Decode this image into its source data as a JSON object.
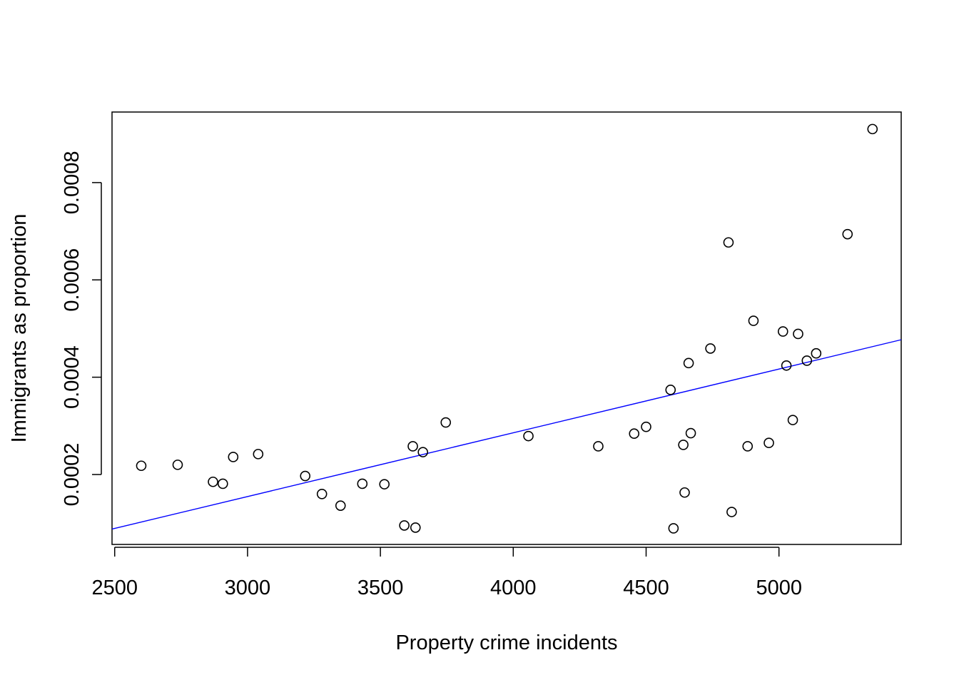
{
  "chart_data": {
    "type": "scatter",
    "title": "",
    "xlabel": "Property crime incidents",
    "ylabel": "Immigrants as proportion",
    "xlim": [
      2490,
      5460
    ],
    "ylim": [
      5.63e-05,
      0.000945
    ],
    "x_ticks": [
      2500,
      3000,
      3500,
      4000,
      4500,
      5000
    ],
    "x_tick_labels": [
      "2500",
      "3000",
      "3500",
      "4000",
      "4500",
      "5000"
    ],
    "y_ticks": [
      0.0002,
      0.0004,
      0.0006,
      0.0008
    ],
    "y_tick_labels": [
      "0.0002",
      "0.0004",
      "0.0006",
      "0.0008"
    ],
    "grid": false,
    "legend": "none",
    "colors": {
      "points": "#000000",
      "fit_line": "#0000ff"
    },
    "series": [
      {
        "points": [
          [
            2600,
            0.000218
          ],
          [
            2737,
            0.00022
          ],
          [
            2870,
            0.000185
          ],
          [
            2907,
            0.000181
          ],
          [
            2946,
            0.000236
          ],
          [
            3040,
            0.000242
          ],
          [
            3217,
            0.000197
          ],
          [
            3280,
            0.00016
          ],
          [
            3350,
            0.000136
          ],
          [
            3432,
            0.000181
          ],
          [
            3515,
            0.00018
          ],
          [
            3590,
            9.53e-05
          ],
          [
            3622,
            0.000258
          ],
          [
            3632,
            9.09e-05
          ],
          [
            3660,
            0.000246
          ],
          [
            3746,
            0.000307
          ],
          [
            4057,
            0.000279
          ],
          [
            4320,
            0.000258
          ],
          [
            4455,
            0.000284
          ],
          [
            4500,
            0.000298
          ],
          [
            4592,
            0.000374
          ],
          [
            4603,
            8.94e-05
          ],
          [
            4640,
            0.000261
          ],
          [
            4645,
            0.000163
          ],
          [
            4660,
            0.000429
          ],
          [
            4668,
            0.000285
          ],
          [
            4742,
            0.000459
          ],
          [
            4810,
            0.000677
          ],
          [
            4822,
            0.000123
          ],
          [
            4882,
            0.000258
          ],
          [
            4904,
            0.000516
          ],
          [
            4962,
            0.000265
          ],
          [
            5015,
            0.000494
          ],
          [
            5028,
            0.000424
          ],
          [
            5052,
            0.000312
          ],
          [
            5072,
            0.000489
          ],
          [
            5105,
            0.000434
          ],
          [
            5140,
            0.000449
          ],
          [
            5258,
            0.000694
          ],
          [
            5352,
            0.00091
          ]
        ]
      }
    ],
    "fit_line": {
      "type": "linear",
      "x": [
        2490,
        5460
      ],
      "y": [
        8.79e-05,
        0.000477
      ]
    }
  }
}
